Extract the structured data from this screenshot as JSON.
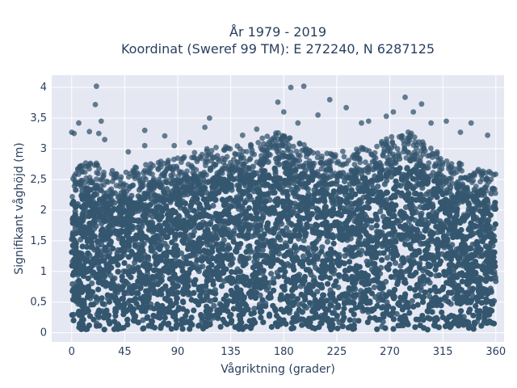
{
  "chart_data": {
    "type": "scatter",
    "title": [
      "År 1979 - 2019",
      "Koordinat (Sweref 99 TM): E 272240, N 6287125"
    ],
    "xlabel": "Vågriktning (grader)",
    "ylabel": "Signifikant våghöjd (m)",
    "xlim": [
      -17,
      367
    ],
    "ylim": [
      -0.15,
      4.2
    ],
    "xticks": [
      0,
      45,
      90,
      135,
      180,
      225,
      270,
      315,
      360
    ],
    "xtick_labels": [
      "0",
      "45",
      "90",
      "135",
      "180",
      "225",
      "270",
      "315",
      "360"
    ],
    "yticks": [
      0,
      0.5,
      1,
      1.5,
      2,
      2.5,
      3,
      3.5,
      4
    ],
    "ytick_labels": [
      "0",
      "0,5",
      "1",
      "1,5",
      "2",
      "2,5",
      "3",
      "3,5",
      "4"
    ],
    "grid": true,
    "marker_color": "#34566f",
    "background_color": "#e5e8f2",
    "envelope": {
      "x": [
        0,
        15,
        30,
        45,
        60,
        75,
        90,
        105,
        120,
        135,
        150,
        165,
        180,
        195,
        210,
        225,
        240,
        255,
        270,
        285,
        300,
        315,
        330,
        345,
        360
      ],
      "y": [
        2.3,
        2.5,
        2.3,
        2.3,
        2.4,
        2.45,
        2.5,
        2.6,
        2.7,
        2.7,
        2.75,
        2.85,
        2.95,
        2.75,
        2.6,
        2.6,
        2.65,
        2.75,
        2.85,
        2.95,
        2.75,
        2.55,
        2.45,
        2.35,
        2.3
      ]
    },
    "outliers": [
      {
        "x": 21,
        "y": 4.02
      },
      {
        "x": 186,
        "y": 4.0
      },
      {
        "x": 197,
        "y": 4.02
      },
      {
        "x": 283,
        "y": 3.84
      },
      {
        "x": 219,
        "y": 3.8
      },
      {
        "x": 20,
        "y": 3.72
      },
      {
        "x": 175,
        "y": 3.76
      },
      {
        "x": 297,
        "y": 3.73
      },
      {
        "x": 233,
        "y": 3.67
      },
      {
        "x": 180,
        "y": 3.6
      },
      {
        "x": 267,
        "y": 3.53
      },
      {
        "x": 209,
        "y": 3.55
      },
      {
        "x": 318,
        "y": 3.45
      },
      {
        "x": 25,
        "y": 3.45
      },
      {
        "x": 6,
        "y": 3.42
      },
      {
        "x": 0,
        "y": 3.27
      },
      {
        "x": 2,
        "y": 3.25
      },
      {
        "x": 15,
        "y": 3.28
      },
      {
        "x": 62,
        "y": 3.3
      },
      {
        "x": 117,
        "y": 3.5
      },
      {
        "x": 113,
        "y": 3.35
      },
      {
        "x": 157,
        "y": 3.32
      },
      {
        "x": 145,
        "y": 3.22
      },
      {
        "x": 192,
        "y": 3.42
      },
      {
        "x": 246,
        "y": 3.42
      },
      {
        "x": 252,
        "y": 3.45
      },
      {
        "x": 273,
        "y": 3.6
      },
      {
        "x": 290,
        "y": 3.6
      },
      {
        "x": 305,
        "y": 3.42
      },
      {
        "x": 339,
        "y": 3.42
      },
      {
        "x": 353,
        "y": 3.22
      },
      {
        "x": 330,
        "y": 3.27
      },
      {
        "x": 79,
        "y": 3.21
      },
      {
        "x": 100,
        "y": 3.1
      },
      {
        "x": 23,
        "y": 3.25
      },
      {
        "x": 87,
        "y": 3.05
      },
      {
        "x": 28,
        "y": 3.15
      },
      {
        "x": 48,
        "y": 2.95
      },
      {
        "x": 62,
        "y": 3.05
      }
    ]
  }
}
